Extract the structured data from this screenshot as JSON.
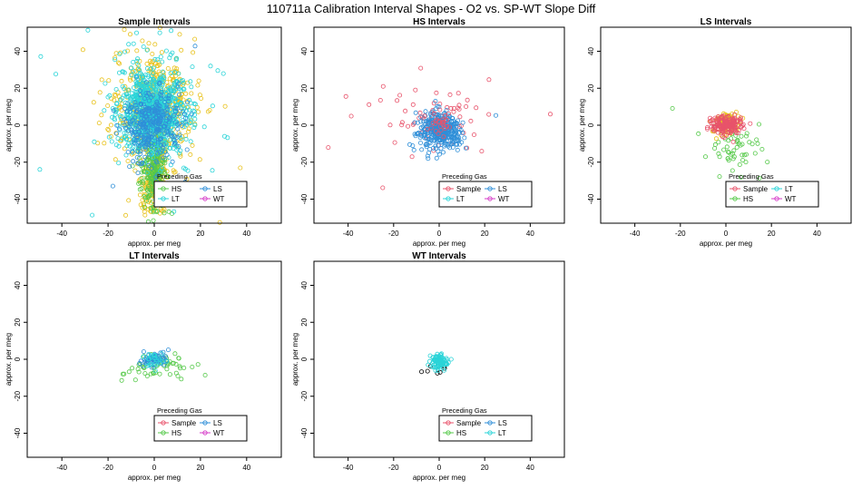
{
  "figure": {
    "title": "110711a   Calibration Interval Shapes - O2 vs. SP-WT Slope Diff"
  },
  "legend_colors": {
    "Sample": "#e8536b",
    "HS": "#55c949",
    "LS": "#2f8fd8",
    "LT": "#2ad4d8",
    "WT": "#d63cc8",
    "extra": "#e8c21c",
    "black": "#000000"
  },
  "chart_data": [
    {
      "type": "scatter",
      "title": "Sample Intervals",
      "xlabel": "approx. per meg",
      "ylabel": "approx. per meg",
      "xlim": [
        -55,
        55
      ],
      "ylim": [
        -53,
        53
      ],
      "x_ticks": [
        -40,
        -20,
        0,
        20,
        40
      ],
      "y_ticks": [
        -40,
        -20,
        0,
        20,
        40
      ],
      "legend": {
        "title": "Preceding Gas",
        "entries": [
          "HS",
          "LS",
          "LT",
          "WT"
        ]
      },
      "clusters": [
        {
          "series": "extra",
          "n": 520,
          "cx": 0,
          "cy": 10,
          "sx": 8,
          "sy": 14,
          "tail": 0.12
        },
        {
          "series": "extra",
          "n": 260,
          "cx": 0,
          "cy": -30,
          "sx": 2.5,
          "sy": 8,
          "tail": 0.02
        },
        {
          "series": "HS",
          "n": 240,
          "cx": 0,
          "cy": -25,
          "sx": 3,
          "sy": 12,
          "tail": 0.02
        },
        {
          "series": "LT",
          "n": 900,
          "cx": -1,
          "cy": 8,
          "sx": 7,
          "sy": 11,
          "tail": 0.08
        },
        {
          "series": "LS",
          "n": 320,
          "cx": -1,
          "cy": 0,
          "sx": 6,
          "sy": 10,
          "tail": 0.05
        }
      ]
    },
    {
      "type": "scatter",
      "title": "HS Intervals",
      "xlabel": "approx. per meg",
      "ylabel": "approx. per meg",
      "xlim": [
        -55,
        55
      ],
      "ylim": [
        -53,
        53
      ],
      "x_ticks": [
        -40,
        -20,
        0,
        20,
        40
      ],
      "y_ticks": [
        -40,
        -20,
        0,
        20,
        40
      ],
      "legend": {
        "title": "Preceding Gas",
        "entries": [
          "Sample",
          "LS",
          "LT",
          "WT"
        ]
      },
      "clusters": [
        {
          "series": "Sample",
          "n": 70,
          "cx": 0,
          "cy": 2,
          "sx": 12,
          "sy": 8,
          "tail": 0.15
        },
        {
          "series": "LS",
          "n": 380,
          "cx": 0,
          "cy": -3,
          "sx": 4.5,
          "sy": 4.5,
          "tail": 0.03
        },
        {
          "series": "Sample",
          "n": 30,
          "cx": 1,
          "cy": 1,
          "sx": 3,
          "sy": 3,
          "tail": 0
        }
      ]
    },
    {
      "type": "scatter",
      "title": "LS Intervals",
      "xlabel": "approx. per meg",
      "ylabel": "approx. per meg",
      "xlim": [
        -55,
        55
      ],
      "ylim": [
        -53,
        53
      ],
      "x_ticks": [
        -40,
        -20,
        0,
        20,
        40
      ],
      "y_ticks": [
        -40,
        -20,
        0,
        20,
        40
      ],
      "legend": {
        "title": "Preceding Gas",
        "entries": [
          "Sample",
          "LT",
          "HS",
          "WT"
        ]
      },
      "clusters": [
        {
          "series": "HS",
          "n": 60,
          "cx": 3,
          "cy": -12,
          "sx": 6,
          "sy": 7,
          "tail": 0.06
        },
        {
          "series": "extra",
          "n": 120,
          "cx": 0,
          "cy": 1,
          "sx": 3,
          "sy": 3,
          "tail": 0
        },
        {
          "series": "Sample",
          "n": 160,
          "cx": 0,
          "cy": 0,
          "sx": 3.5,
          "sy": 2.5,
          "tail": 0
        }
      ]
    },
    {
      "type": "scatter",
      "title": "LT Intervals",
      "xlabel": "approx. per meg",
      "ylabel": "approx. per meg",
      "xlim": [
        -55,
        55
      ],
      "ylim": [
        -53,
        53
      ],
      "x_ticks": [
        -40,
        -20,
        0,
        20,
        40
      ],
      "y_ticks": [
        -40,
        -20,
        0,
        20,
        40
      ],
      "legend": {
        "title": "Preceding Gas",
        "entries": [
          "Sample",
          "LS",
          "HS",
          "WT"
        ]
      },
      "clusters": [
        {
          "series": "HS",
          "n": 60,
          "cx": 0,
          "cy": -3,
          "sx": 8,
          "sy": 4,
          "tail": 0
        },
        {
          "series": "LS",
          "n": 70,
          "cx": 0,
          "cy": 0,
          "sx": 2.5,
          "sy": 2,
          "tail": 0
        },
        {
          "series": "LT",
          "n": 25,
          "cx": 0,
          "cy": 0,
          "sx": 2,
          "sy": 2,
          "tail": 0
        }
      ]
    },
    {
      "type": "scatter",
      "title": "WT Intervals",
      "xlabel": "approx. per meg",
      "ylabel": "approx. per meg",
      "xlim": [
        -55,
        55
      ],
      "ylim": [
        -53,
        53
      ],
      "x_ticks": [
        -40,
        -20,
        0,
        20,
        40
      ],
      "y_ticks": [
        -40,
        -20,
        0,
        20,
        40
      ],
      "legend": {
        "title": "Preceding Gas",
        "entries": [
          "Sample",
          "LS",
          "HS",
          "LT"
        ]
      },
      "clusters": [
        {
          "series": "black",
          "n": 8,
          "cx": -2,
          "cy": -6,
          "sx": 2.5,
          "sy": 2,
          "tail": 0
        },
        {
          "series": "LT",
          "n": 90,
          "cx": 0,
          "cy": -1,
          "sx": 2.2,
          "sy": 2,
          "tail": 0
        }
      ]
    }
  ]
}
